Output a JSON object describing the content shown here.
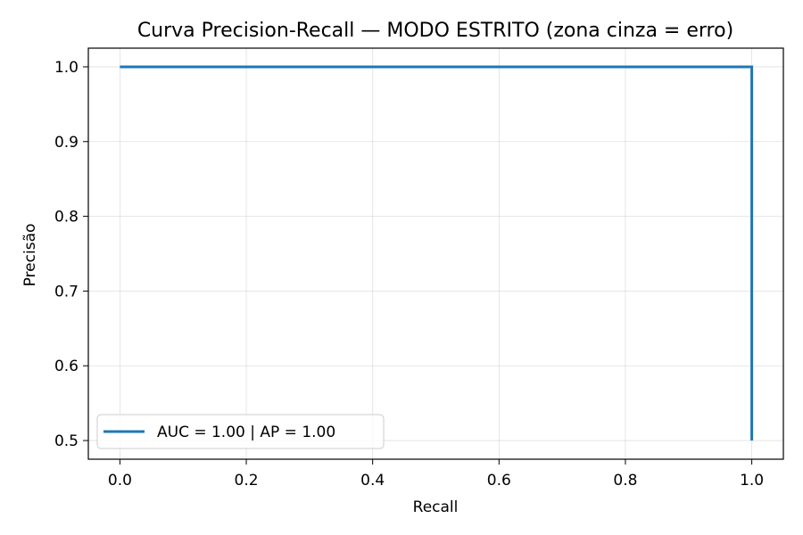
{
  "chart_data": {
    "type": "line",
    "title": "Curva Precision-Recall — MODO ESTRITO (zona cinza = erro)",
    "xlabel": "Recall",
    "ylabel": "Precisão",
    "xlim": [
      -0.05,
      1.05
    ],
    "ylim": [
      0.475,
      1.025
    ],
    "xticks": [
      0.0,
      0.2,
      0.4,
      0.6,
      0.8,
      1.0
    ],
    "yticks": [
      0.5,
      0.6,
      0.7,
      0.8,
      0.9,
      1.0
    ],
    "xtick_labels": [
      "0.0",
      "0.2",
      "0.4",
      "0.6",
      "0.8",
      "1.0"
    ],
    "ytick_labels": [
      "0.5",
      "0.6",
      "0.7",
      "0.8",
      "0.9",
      "1.0"
    ],
    "grid": true,
    "legend_position": "lower-left",
    "series": [
      {
        "name": "AUC = 1.00 | AP = 1.00",
        "color": "#1f77b4",
        "x": [
          0.0,
          1.0,
          1.0
        ],
        "y": [
          1.0,
          1.0,
          0.5
        ]
      }
    ]
  }
}
